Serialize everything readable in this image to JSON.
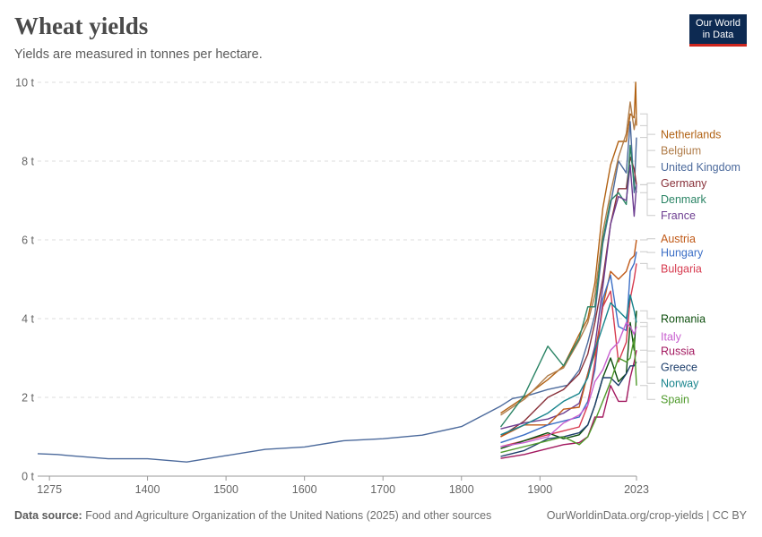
{
  "header": {
    "title": "Wheat yields",
    "subtitle": "Yields are measured in tonnes per hectare."
  },
  "logo": {
    "line1": "Our World",
    "line2": "in Data"
  },
  "footer": {
    "source_label": "Data source:",
    "source_text": "Food and Agriculture Organization of the United Nations (2025) and other sources",
    "link_text": "OurWorldinData.org/crop-yields",
    "license": "| CC BY"
  },
  "chart_data": {
    "type": "line",
    "xlim": [
      1260,
      2023
    ],
    "ylim": [
      0,
      10
    ],
    "x_ticks": [
      1275,
      1400,
      1500,
      1600,
      1700,
      1800,
      1900,
      2023
    ],
    "y_ticks": [
      {
        "value": 0,
        "label": "0 t"
      },
      {
        "value": 2,
        "label": "2 t"
      },
      {
        "value": 4,
        "label": "4 t"
      },
      {
        "value": 6,
        "label": "6 t"
      },
      {
        "value": 8,
        "label": "8 t"
      },
      {
        "value": 10,
        "label": "10 t"
      }
    ],
    "grid": "horizontal dashed",
    "legend_placement": "right, line-end labels",
    "series": [
      {
        "name": "United Kingdom",
        "color": "#4c6a9c",
        "points": [
          [
            1260,
            0.57
          ],
          [
            1285,
            0.55
          ],
          [
            1300,
            0.52
          ],
          [
            1350,
            0.44
          ],
          [
            1400,
            0.44
          ],
          [
            1450,
            0.36
          ],
          [
            1500,
            0.52
          ],
          [
            1550,
            0.68
          ],
          [
            1600,
            0.74
          ],
          [
            1650,
            0.9
          ],
          [
            1700,
            0.95
          ],
          [
            1750,
            1.04
          ],
          [
            1800,
            1.26
          ],
          [
            1850,
            1.78
          ],
          [
            1865,
            1.97
          ],
          [
            1885,
            2.05
          ],
          [
            1910,
            2.2
          ],
          [
            1935,
            2.31
          ],
          [
            1950,
            2.69
          ],
          [
            1961,
            3.4
          ],
          [
            1970,
            4.1
          ],
          [
            1980,
            5.9
          ],
          [
            1990,
            6.9
          ],
          [
            2000,
            8.0
          ],
          [
            2010,
            7.7
          ],
          [
            2015,
            9.0
          ],
          [
            2020,
            7.2
          ],
          [
            2023,
            8.6
          ]
        ]
      },
      {
        "name": "Netherlands",
        "color": "#b16214",
        "points": [
          [
            1850,
            1.6
          ],
          [
            1880,
            2.0
          ],
          [
            1910,
            2.45
          ],
          [
            1930,
            2.8
          ],
          [
            1950,
            3.6
          ],
          [
            1961,
            4.0
          ],
          [
            1970,
            4.9
          ],
          [
            1980,
            6.8
          ],
          [
            1990,
            7.9
          ],
          [
            2000,
            8.5
          ],
          [
            2010,
            8.5
          ],
          [
            2015,
            9.2
          ],
          [
            2020,
            9.1
          ],
          [
            2022,
            10.0
          ],
          [
            2023,
            8.9
          ]
        ]
      },
      {
        "name": "Belgium",
        "color": "#b07d4a",
        "points": [
          [
            1850,
            1.55
          ],
          [
            1880,
            1.95
          ],
          [
            1910,
            2.55
          ],
          [
            1930,
            2.75
          ],
          [
            1950,
            3.45
          ],
          [
            1961,
            3.9
          ],
          [
            1970,
            4.6
          ],
          [
            1980,
            6.2
          ],
          [
            1990,
            7.2
          ],
          [
            2000,
            8.1
          ],
          [
            2010,
            8.7
          ],
          [
            2015,
            9.5
          ],
          [
            2020,
            8.8
          ],
          [
            2023,
            9.2
          ]
        ]
      },
      {
        "name": "Germany",
        "color": "#883039",
        "points": [
          [
            1850,
            1.0
          ],
          [
            1880,
            1.4
          ],
          [
            1910,
            2.0
          ],
          [
            1930,
            2.2
          ],
          [
            1950,
            2.6
          ],
          [
            1961,
            3.1
          ],
          [
            1970,
            3.9
          ],
          [
            1980,
            5.0
          ],
          [
            1990,
            6.4
          ],
          [
            2000,
            7.3
          ],
          [
            2010,
            7.3
          ],
          [
            2015,
            8.1
          ],
          [
            2020,
            7.8
          ],
          [
            2023,
            7.4
          ]
        ]
      },
      {
        "name": "Denmark",
        "color": "#2b8465",
        "points": [
          [
            1850,
            1.25
          ],
          [
            1880,
            2.05
          ],
          [
            1910,
            3.3
          ],
          [
            1930,
            2.8
          ],
          [
            1950,
            3.5
          ],
          [
            1961,
            4.3
          ],
          [
            1970,
            4.3
          ],
          [
            1980,
            6.0
          ],
          [
            1990,
            7.0
          ],
          [
            2000,
            7.2
          ],
          [
            2010,
            6.9
          ],
          [
            2015,
            8.4
          ],
          [
            2020,
            7.4
          ],
          [
            2023,
            7.2
          ]
        ]
      },
      {
        "name": "France",
        "color": "#6d3e91",
        "points": [
          [
            1850,
            1.2
          ],
          [
            1880,
            1.35
          ],
          [
            1910,
            1.45
          ],
          [
            1930,
            1.6
          ],
          [
            1950,
            1.85
          ],
          [
            1961,
            2.6
          ],
          [
            1970,
            3.3
          ],
          [
            1980,
            4.8
          ],
          [
            1990,
            6.4
          ],
          [
            2000,
            7.1
          ],
          [
            2010,
            7.0
          ],
          [
            2015,
            7.9
          ],
          [
            2020,
            6.6
          ],
          [
            2023,
            7.4
          ]
        ]
      },
      {
        "name": "Austria",
        "color": "#c05917",
        "points": [
          [
            1850,
            1.0
          ],
          [
            1880,
            1.3
          ],
          [
            1910,
            1.3
          ],
          [
            1930,
            1.7
          ],
          [
            1950,
            1.75
          ],
          [
            1961,
            2.6
          ],
          [
            1970,
            3.1
          ],
          [
            1980,
            4.3
          ],
          [
            1990,
            5.2
          ],
          [
            2000,
            5.0
          ],
          [
            2010,
            5.2
          ],
          [
            2015,
            5.5
          ],
          [
            2020,
            5.6
          ],
          [
            2023,
            6.0
          ]
        ]
      },
      {
        "name": "Hungary",
        "color": "#3c6fc6",
        "points": [
          [
            1850,
            0.85
          ],
          [
            1880,
            1.05
          ],
          [
            1910,
            1.3
          ],
          [
            1930,
            1.4
          ],
          [
            1950,
            1.5
          ],
          [
            1961,
            1.9
          ],
          [
            1970,
            2.7
          ],
          [
            1980,
            4.5
          ],
          [
            1990,
            5.1
          ],
          [
            2000,
            3.8
          ],
          [
            2010,
            3.7
          ],
          [
            2015,
            5.2
          ],
          [
            2020,
            5.4
          ],
          [
            2023,
            5.7
          ]
        ]
      },
      {
        "name": "Bulgaria",
        "color": "#d73c50",
        "points": [
          [
            1850,
            0.75
          ],
          [
            1880,
            0.9
          ],
          [
            1910,
            1.05
          ],
          [
            1930,
            1.15
          ],
          [
            1950,
            1.25
          ],
          [
            1961,
            1.8
          ],
          [
            1970,
            2.9
          ],
          [
            1980,
            4.3
          ],
          [
            1990,
            4.7
          ],
          [
            2000,
            2.9
          ],
          [
            2010,
            3.4
          ],
          [
            2015,
            4.5
          ],
          [
            2020,
            5.0
          ],
          [
            2023,
            5.4
          ]
        ]
      },
      {
        "name": "Romania",
        "color": "#0e4f0e",
        "points": [
          [
            1850,
            0.7
          ],
          [
            1880,
            0.9
          ],
          [
            1910,
            1.1
          ],
          [
            1930,
            0.95
          ],
          [
            1950,
            1.05
          ],
          [
            1961,
            1.3
          ],
          [
            1970,
            1.8
          ],
          [
            1980,
            2.5
          ],
          [
            1990,
            3.0
          ],
          [
            2000,
            2.4
          ],
          [
            2010,
            2.6
          ],
          [
            2015,
            3.9
          ],
          [
            2020,
            3.2
          ],
          [
            2023,
            4.2
          ]
        ]
      },
      {
        "name": "Italy",
        "color": "#c75ecf",
        "points": [
          [
            1850,
            0.75
          ],
          [
            1880,
            0.85
          ],
          [
            1910,
            1.0
          ],
          [
            1930,
            1.35
          ],
          [
            1950,
            1.55
          ],
          [
            1961,
            1.8
          ],
          [
            1970,
            2.4
          ],
          [
            1980,
            2.7
          ],
          [
            1990,
            3.2
          ],
          [
            2000,
            3.4
          ],
          [
            2010,
            3.9
          ],
          [
            2015,
            3.8
          ],
          [
            2020,
            3.6
          ],
          [
            2023,
            3.8
          ]
        ]
      },
      {
        "name": "Russia",
        "color": "#a2185f",
        "points": [
          [
            1850,
            0.45
          ],
          [
            1880,
            0.55
          ],
          [
            1910,
            0.7
          ],
          [
            1930,
            0.8
          ],
          [
            1950,
            0.85
          ],
          [
            1961,
            1.0
          ],
          [
            1970,
            1.5
          ],
          [
            1980,
            1.5
          ],
          [
            1990,
            2.3
          ],
          [
            2000,
            1.9
          ],
          [
            2010,
            1.9
          ],
          [
            2015,
            2.5
          ],
          [
            2020,
            2.9
          ],
          [
            2023,
            3.2
          ]
        ]
      },
      {
        "name": "Greece",
        "color": "#1d3e6b",
        "points": [
          [
            1850,
            0.5
          ],
          [
            1880,
            0.65
          ],
          [
            1910,
            0.95
          ],
          [
            1930,
            1.0
          ],
          [
            1950,
            1.1
          ],
          [
            1961,
            1.3
          ],
          [
            1970,
            1.8
          ],
          [
            1980,
            2.5
          ],
          [
            1990,
            2.5
          ],
          [
            2000,
            2.3
          ],
          [
            2010,
            2.6
          ],
          [
            2015,
            2.8
          ],
          [
            2020,
            2.8
          ],
          [
            2023,
            2.9
          ]
        ]
      },
      {
        "name": "Norway",
        "color": "#17848c",
        "points": [
          [
            1850,
            1.05
          ],
          [
            1880,
            1.3
          ],
          [
            1910,
            1.6
          ],
          [
            1930,
            1.9
          ],
          [
            1950,
            2.1
          ],
          [
            1961,
            2.5
          ],
          [
            1970,
            3.2
          ],
          [
            1980,
            3.8
          ],
          [
            1990,
            4.4
          ],
          [
            2000,
            4.2
          ],
          [
            2010,
            4.0
          ],
          [
            2015,
            4.6
          ],
          [
            2020,
            4.2
          ],
          [
            2023,
            3.9
          ]
        ]
      },
      {
        "name": "Spain",
        "color": "#4f9a2b",
        "points": [
          [
            1850,
            0.6
          ],
          [
            1880,
            0.75
          ],
          [
            1910,
            0.9
          ],
          [
            1930,
            1.0
          ],
          [
            1950,
            0.8
          ],
          [
            1961,
            1.0
          ],
          [
            1970,
            1.4
          ],
          [
            1980,
            1.9
          ],
          [
            1990,
            2.4
          ],
          [
            2000,
            3.0
          ],
          [
            2010,
            2.9
          ],
          [
            2015,
            3.0
          ],
          [
            2020,
            3.5
          ],
          [
            2023,
            2.3
          ]
        ]
      }
    ],
    "labels": [
      {
        "name": "Netherlands",
        "value": 8.68,
        "color": "#b16214"
      },
      {
        "name": "Belgium",
        "value": 8.27,
        "color": "#b07d4a"
      },
      {
        "name": "United Kingdom",
        "value": 7.85,
        "color": "#4c6a9c"
      },
      {
        "name": "Germany",
        "value": 7.44,
        "color": "#883039"
      },
      {
        "name": "Denmark",
        "value": 7.03,
        "color": "#2b8465"
      },
      {
        "name": "France",
        "value": 6.62,
        "color": "#6d3e91"
      },
      {
        "name": "Austria",
        "value": 6.03,
        "color": "#c05917"
      },
      {
        "name": "Hungary",
        "value": 5.68,
        "color": "#3c6fc6"
      },
      {
        "name": "Bulgaria",
        "value": 5.27,
        "color": "#d73c50"
      },
      {
        "name": "Romania",
        "value": 4.0,
        "color": "#0e4f0e"
      },
      {
        "name": "Italy",
        "value": 3.54,
        "color": "#c75ecf"
      },
      {
        "name": "Russia",
        "value": 3.18,
        "color": "#a2185f"
      },
      {
        "name": "Greece",
        "value": 2.77,
        "color": "#1d3e6b"
      },
      {
        "name": "Norway",
        "value": 2.36,
        "color": "#17848c"
      },
      {
        "name": "Spain",
        "value": 1.95,
        "color": "#4f9a2b"
      }
    ]
  }
}
